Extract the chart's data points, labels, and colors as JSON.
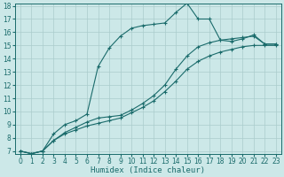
{
  "title": "",
  "xlabel": "Humidex (Indice chaleur)",
  "ylabel": "",
  "bg_color": "#cce8e8",
  "line_color": "#1a6b6b",
  "grid_color": "#aacccc",
  "x_data": [
    0,
    1,
    2,
    3,
    4,
    5,
    6,
    7,
    8,
    9,
    10,
    11,
    12,
    13,
    14,
    15,
    16,
    17,
    18,
    19,
    20,
    21,
    22,
    23
  ],
  "series1": [
    7.0,
    6.8,
    7.0,
    7.8,
    8.3,
    8.6,
    8.9,
    9.1,
    9.3,
    9.5,
    9.9,
    10.3,
    10.8,
    11.5,
    12.3,
    13.2,
    13.8,
    14.2,
    14.5,
    14.7,
    14.9,
    15.0,
    15.0,
    15.0
  ],
  "series2": [
    7.0,
    6.8,
    7.0,
    7.8,
    8.4,
    8.8,
    9.2,
    9.5,
    9.6,
    9.7,
    10.1,
    10.6,
    11.2,
    12.0,
    13.2,
    14.2,
    14.9,
    15.2,
    15.4,
    15.5,
    15.6,
    15.7,
    15.1,
    15.1
  ],
  "series3": [
    7.0,
    6.8,
    7.0,
    8.3,
    9.0,
    9.3,
    9.8,
    13.4,
    14.8,
    15.7,
    16.3,
    16.5,
    16.6,
    16.7,
    17.5,
    18.2,
    17.0,
    17.0,
    15.4,
    15.3,
    15.5,
    15.8,
    15.1,
    15.1
  ],
  "ylim": [
    7,
    18
  ],
  "xlim": [
    -0.5,
    23.5
  ],
  "yticks": [
    7,
    8,
    9,
    10,
    11,
    12,
    13,
    14,
    15,
    16,
    17,
    18
  ],
  "xticks": [
    0,
    1,
    2,
    3,
    4,
    5,
    6,
    7,
    8,
    9,
    10,
    11,
    12,
    13,
    14,
    15,
    16,
    17,
    18,
    19,
    20,
    21,
    22,
    23
  ],
  "xlabel_fontsize": 6.5,
  "tick_fontsize": 5.5
}
